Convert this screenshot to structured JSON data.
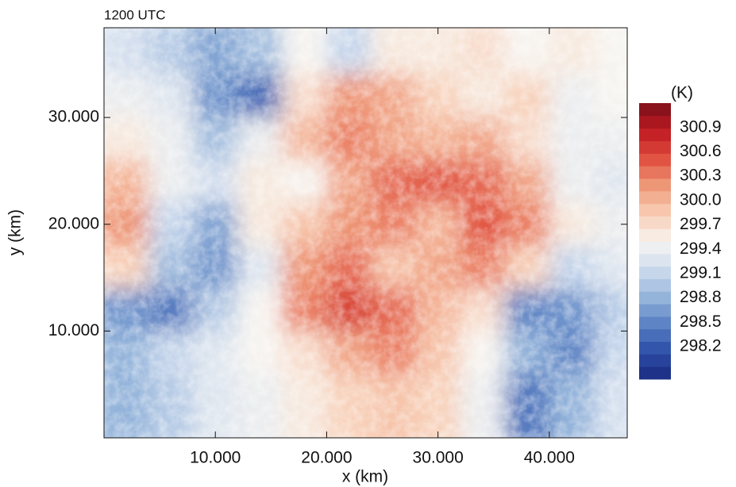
{
  "chart_data": {
    "type": "heatmap",
    "title": "1200 UTC",
    "xlabel": "x (km)",
    "ylabel": "y (km)",
    "colorbar_label": "(K)",
    "xlim": [
      0,
      47
    ],
    "ylim": [
      0,
      38.4
    ],
    "xticks": [
      {
        "value": 10,
        "label": "10.000"
      },
      {
        "value": 20,
        "label": "20.000"
      },
      {
        "value": 30,
        "label": "30.000"
      },
      {
        "value": 40,
        "label": "40.000"
      }
    ],
    "yticks": [
      {
        "value": 10,
        "label": "10.000"
      },
      {
        "value": 20,
        "label": "20.000"
      },
      {
        "value": 30,
        "label": "30.000"
      }
    ],
    "clim": [
      297.8,
      301.2
    ],
    "cticks": [
      300.9,
      300.6,
      300.3,
      {
        "value": 300.0,
        "label": "300.0"
      },
      299.7,
      299.4,
      299.1,
      298.8,
      298.5,
      298.2
    ],
    "colormap": [
      "#1a2a80",
      "#2d4fa8",
      "#5b82c4",
      "#97b6db",
      "#cfdcee",
      "#f7f4f0",
      "#f8cdb4",
      "#ef9a7a",
      "#e0503f",
      "#c01b22",
      "#7a0f1a"
    ],
    "x": [
      2,
      6,
      10,
      14,
      18,
      22,
      26,
      30,
      34,
      38,
      42,
      46
    ],
    "y": [
      36,
      32,
      28,
      24,
      20,
      16,
      12,
      8,
      4
    ],
    "z": [
      [
        299.2,
        299.0,
        298.7,
        298.9,
        299.5,
        299.1,
        299.6,
        299.6,
        299.7,
        299.5,
        299.6,
        299.5
      ],
      [
        299.4,
        299.3,
        298.6,
        298.3,
        299.7,
        300.2,
        300.1,
        299.8,
        299.6,
        299.8,
        299.4,
        299.5
      ],
      [
        299.6,
        299.4,
        298.9,
        299.4,
        300.0,
        300.3,
        300.1,
        300.0,
        300.1,
        299.7,
        299.4,
        299.4
      ],
      [
        300.0,
        299.4,
        299.2,
        299.6,
        299.5,
        300.1,
        300.4,
        300.5,
        300.4,
        300.1,
        299.4,
        299.3
      ],
      [
        300.2,
        299.1,
        298.7,
        299.6,
        299.9,
        300.2,
        300.3,
        300.0,
        300.5,
        300.3,
        299.6,
        299.4
      ],
      [
        299.8,
        298.9,
        298.6,
        299.3,
        300.2,
        300.4,
        299.9,
        300.1,
        300.3,
        299.8,
        299.1,
        299.3
      ],
      [
        298.6,
        298.4,
        299.0,
        299.5,
        300.3,
        300.6,
        300.4,
        300.0,
        299.7,
        298.5,
        298.6,
        299.0
      ],
      [
        298.8,
        299.1,
        299.3,
        299.5,
        299.7,
        300.1,
        300.3,
        299.9,
        299.5,
        298.8,
        298.5,
        299.1
      ],
      [
        298.8,
        299.0,
        299.3,
        299.4,
        299.6,
        299.8,
        299.9,
        299.8,
        299.4,
        298.4,
        298.8,
        299.2
      ]
    ]
  }
}
